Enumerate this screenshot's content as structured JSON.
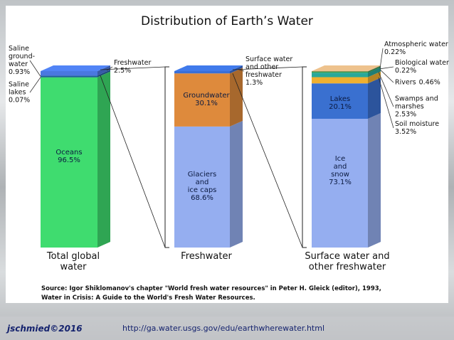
{
  "title": "Distribution of Earth’s Water",
  "source": "Source: Igor Shiklomanov's chapter \"World fresh water resources\" in Peter H. Gleick (editor), 1993,\nWater in Crisis: A Guide to the World's Fresh Water Resources.",
  "footer": {
    "author": "jschmied©2016",
    "url": "http://ga.water.usgs.gov/edu/earthwherewater.html"
  },
  "chart_data": [
    {
      "type": "bar",
      "x_label": "Total global\nwater",
      "categories": [
        "Oceans",
        "Saline\nlakes",
        "Saline\nground-\nwater",
        "Freshwater"
      ],
      "values": [
        96.5,
        0.07,
        0.93,
        2.5
      ],
      "value_labels": [
        "96.5%",
        "0.07%",
        "0.93%",
        "2.5%"
      ],
      "colors": [
        "#3fdc6f",
        "#2f8f5f",
        "#1f5f9f",
        "#4a78e0"
      ]
    },
    {
      "type": "bar",
      "x_label": "Freshwater",
      "categories": [
        "Glaciers\nand\nice caps",
        "Groundwater",
        "Surface water\nand other\nfreshwater"
      ],
      "values": [
        68.6,
        30.1,
        1.3
      ],
      "value_labels": [
        "68.6%",
        "30.1%",
        "1.3%"
      ],
      "colors": [
        "#95aef0",
        "#de8a3c",
        "#3a6fd6"
      ]
    },
    {
      "type": "bar",
      "x_label": "Surface water and\nother freshwater",
      "categories": [
        "Ice\nand\nsnow",
        "Lakes",
        "Soil moisture",
        "Swamps and\nmarshes",
        "Rivers",
        "Biological water",
        "Atmospheric water"
      ],
      "values": [
        73.1,
        20.1,
        3.52,
        2.53,
        0.46,
        0.22,
        0.22
      ],
      "value_labels": [
        "73.1%",
        "20.1%",
        "3.52%",
        "2.53%",
        "0.46%",
        "0.22%",
        "0.22%"
      ],
      "colors": [
        "#95aef0",
        "#3a70d0",
        "#f0b030",
        "#2aa89a",
        "#2a9a40",
        "#1d6e2e",
        "#d8b080"
      ]
    }
  ]
}
